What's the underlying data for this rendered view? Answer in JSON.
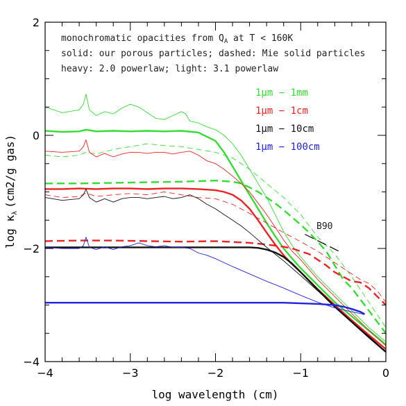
{
  "chart_data": {
    "type": "line",
    "xlabel": "log wavelength (cm)",
    "ylabel": "log κ_λ (cm2/g gas)",
    "ylabel_main": "log κ",
    "ylabel_sub": "λ",
    "ylabel_units": "(cm2/g gas)",
    "xlim": [
      -4,
      0
    ],
    "ylim": [
      -4,
      2
    ],
    "x_ticks": [
      -4,
      -3,
      -2,
      -1,
      0
    ],
    "x_tick_labels": [
      "−4",
      "−3",
      "−2",
      "−1",
      "0"
    ],
    "y_ticks": [
      -4,
      -2,
      0,
      2
    ],
    "y_tick_labels": [
      "−4",
      "−2",
      "0",
      "2"
    ],
    "grid": false,
    "legend_position": "top-right",
    "notes": {
      "line1_prefix": "monochromatic opacities from Q",
      "line1_sub": "A",
      "line1_suffix": " at T < 160K",
      "line2": "solid: our porous particles; dashed: Mie solid particles",
      "line3": "heavy: 2.0 powerlaw; light: 3.1 powerlaw"
    },
    "legend": [
      {
        "mu": "1μm",
        "rest": " − 1mm",
        "color": "#33dd33"
      },
      {
        "mu": "1μm",
        "rest": " − 1cm",
        "color": "#ee2222"
      },
      {
        "mu": "1μm",
        "rest": " − 10cm",
        "color": "#111111"
      },
      {
        "mu": "1μm",
        "rest": " − 100cm",
        "color": "#2222dd"
      }
    ],
    "annotation": {
      "text": "B90",
      "line": [
        [
          -0.95,
          -1.75
        ],
        [
          -0.55,
          -2.05
        ]
      ]
    },
    "series": [
      {
        "name": "1μm − 1mm",
        "style": "solid",
        "weight": "light",
        "color": "#33dd33",
        "x": [
          -4.0,
          -3.8,
          -3.6,
          -3.55,
          -3.52,
          -3.48,
          -3.4,
          -3.3,
          -3.2,
          -3.1,
          -3.0,
          -2.9,
          -2.8,
          -2.7,
          -2.6,
          -2.5,
          -2.4,
          -2.35,
          -2.3,
          -2.2,
          -2.1,
          -2.0,
          -1.9,
          -1.8,
          -1.7,
          -1.6,
          -1.5,
          -1.4,
          -1.3,
          -1.2,
          -1.1,
          -1.0,
          -0.8,
          -0.6,
          -0.4,
          -0.2,
          0.0
        ],
        "y": [
          0.5,
          0.4,
          0.45,
          0.55,
          0.73,
          0.45,
          0.35,
          0.42,
          0.38,
          0.48,
          0.55,
          0.5,
          0.4,
          0.3,
          0.28,
          0.35,
          0.42,
          0.38,
          0.25,
          0.22,
          0.15,
          0.1,
          0.0,
          -0.15,
          -0.35,
          -0.6,
          -0.85,
          -1.1,
          -1.4,
          -1.7,
          -1.95,
          -2.15,
          -2.5,
          -2.8,
          -3.1,
          -3.4,
          -3.65
        ]
      },
      {
        "name": "1μm − 1mm",
        "style": "solid",
        "weight": "heavy",
        "color": "#33dd33",
        "x": [
          -4.0,
          -3.8,
          -3.6,
          -3.52,
          -3.4,
          -3.2,
          -3.0,
          -2.8,
          -2.6,
          -2.4,
          -2.2,
          -2.0,
          -1.9,
          -1.8,
          -1.7,
          -1.6,
          -1.5,
          -1.4,
          -1.3,
          -1.2,
          -1.1,
          -1.0,
          -0.8,
          -0.6,
          -0.4,
          -0.2,
          0.0
        ],
        "y": [
          0.08,
          0.06,
          0.07,
          0.1,
          0.07,
          0.08,
          0.07,
          0.08,
          0.07,
          0.08,
          0.05,
          -0.1,
          -0.3,
          -0.55,
          -0.8,
          -1.05,
          -1.3,
          -1.55,
          -1.78,
          -2.0,
          -2.18,
          -2.35,
          -2.65,
          -2.95,
          -3.2,
          -3.45,
          -3.7
        ]
      },
      {
        "name": "1μm − 1mm",
        "style": "dashed",
        "weight": "light",
        "color": "#33dd33",
        "x": [
          -4.0,
          -3.8,
          -3.6,
          -3.52,
          -3.4,
          -3.2,
          -3.0,
          -2.8,
          -2.6,
          -2.4,
          -2.2,
          -2.0,
          -1.8,
          -1.6,
          -1.4,
          -1.2,
          -1.0,
          -0.9,
          -0.8,
          -0.6,
          -0.4,
          -0.2,
          0.0
        ],
        "y": [
          -0.35,
          -0.38,
          -0.35,
          -0.3,
          -0.33,
          -0.25,
          -0.2,
          -0.15,
          -0.18,
          -0.2,
          -0.25,
          -0.3,
          -0.4,
          -0.6,
          -0.85,
          -1.1,
          -1.4,
          -1.6,
          -1.8,
          -2.1,
          -2.5,
          -2.95,
          -3.4
        ]
      },
      {
        "name": "1μm − 1mm",
        "style": "dashed",
        "weight": "heavy",
        "color": "#33dd33",
        "x": [
          -4.0,
          -3.6,
          -3.2,
          -2.8,
          -2.4,
          -2.0,
          -1.8,
          -1.7,
          -1.6,
          -1.5,
          -1.4,
          -1.3,
          -1.2,
          -1.1,
          -1.0,
          -0.9,
          -0.8,
          -0.7,
          -0.6,
          -0.5,
          -0.4,
          -0.3,
          -0.2,
          -0.1,
          0.0
        ],
        "y": [
          -0.85,
          -0.85,
          -0.84,
          -0.83,
          -0.82,
          -0.8,
          -0.82,
          -0.85,
          -0.92,
          -1.0,
          -1.1,
          -1.2,
          -1.32,
          -1.45,
          -1.58,
          -1.72,
          -1.88,
          -2.05,
          -2.3,
          -2.55,
          -2.7,
          -2.9,
          -3.1,
          -3.3,
          -3.5
        ]
      },
      {
        "name": "1μm − 1cm",
        "style": "solid",
        "weight": "light",
        "color": "#ee2222",
        "x": [
          -4.0,
          -3.8,
          -3.6,
          -3.55,
          -3.52,
          -3.48,
          -3.4,
          -3.3,
          -3.2,
          -3.1,
          -3.0,
          -2.9,
          -2.8,
          -2.7,
          -2.6,
          -2.5,
          -2.4,
          -2.3,
          -2.2,
          -2.1,
          -2.0,
          -1.9,
          -1.8,
          -1.7,
          -1.6,
          -1.5,
          -1.4,
          -1.3,
          -1.2,
          -1.1,
          -1.0,
          -0.8,
          -0.6,
          -0.4,
          -0.2,
          0.0
        ],
        "y": [
          -0.28,
          -0.3,
          -0.28,
          -0.2,
          -0.08,
          -0.3,
          -0.38,
          -0.32,
          -0.38,
          -0.33,
          -0.3,
          -0.3,
          -0.32,
          -0.3,
          -0.3,
          -0.33,
          -0.3,
          -0.28,
          -0.35,
          -0.45,
          -0.5,
          -0.6,
          -0.72,
          -0.85,
          -1.0,
          -1.2,
          -1.4,
          -1.62,
          -1.85,
          -2.05,
          -2.2,
          -2.55,
          -2.85,
          -3.15,
          -3.45,
          -3.72
        ]
      },
      {
        "name": "1μm − 1cm",
        "style": "solid",
        "weight": "heavy",
        "color": "#ee2222",
        "x": [
          -4.0,
          -3.8,
          -3.6,
          -3.4,
          -3.2,
          -3.0,
          -2.8,
          -2.6,
          -2.4,
          -2.2,
          -2.0,
          -1.9,
          -1.8,
          -1.7,
          -1.6,
          -1.5,
          -1.4,
          -1.3,
          -1.2,
          -1.1,
          -1.0,
          -0.8,
          -0.6,
          -0.4,
          -0.2,
          0.0
        ],
        "y": [
          -0.95,
          -0.95,
          -0.94,
          -0.95,
          -0.94,
          -0.94,
          -0.95,
          -0.94,
          -0.94,
          -0.95,
          -0.97,
          -1.0,
          -1.05,
          -1.15,
          -1.3,
          -1.5,
          -1.72,
          -1.93,
          -2.12,
          -2.28,
          -2.42,
          -2.72,
          -3.0,
          -3.27,
          -3.53,
          -3.78
        ]
      },
      {
        "name": "1μm − 1cm",
        "style": "dashed",
        "weight": "light",
        "color": "#ee2222",
        "x": [
          -4.0,
          -3.8,
          -3.6,
          -3.52,
          -3.4,
          -3.2,
          -3.0,
          -2.8,
          -2.6,
          -2.4,
          -2.2,
          -2.0,
          -1.8,
          -1.6,
          -1.4,
          -1.2,
          -1.0,
          -0.8,
          -0.6,
          -0.4,
          -0.3,
          -0.2,
          -0.1,
          0.0
        ],
        "y": [
          -1.05,
          -1.1,
          -1.08,
          -1.02,
          -1.08,
          -1.05,
          -1.03,
          -1.05,
          -1.0,
          -1.05,
          -1.1,
          -1.12,
          -1.22,
          -1.38,
          -1.55,
          -1.72,
          -1.88,
          -2.05,
          -2.25,
          -2.45,
          -2.55,
          -2.62,
          -2.75,
          -2.95
        ]
      },
      {
        "name": "1μm − 1cm",
        "style": "dashed",
        "weight": "heavy",
        "color": "#ee2222",
        "x": [
          -4.0,
          -3.6,
          -3.2,
          -2.8,
          -2.4,
          -2.0,
          -1.6,
          -1.4,
          -1.2,
          -1.1,
          -1.0,
          -0.9,
          -0.8,
          -0.7,
          -0.6,
          -0.5,
          -0.4,
          -0.3,
          -0.2,
          -0.1,
          0.0
        ],
        "y": [
          -1.87,
          -1.86,
          -1.86,
          -1.87,
          -1.88,
          -1.87,
          -1.9,
          -1.93,
          -1.97,
          -2.0,
          -2.05,
          -2.1,
          -2.2,
          -2.3,
          -2.42,
          -2.5,
          -2.58,
          -2.6,
          -2.7,
          -2.85,
          -3.0
        ]
      },
      {
        "name": "1μm − 10cm",
        "style": "solid",
        "weight": "light",
        "color": "#111111",
        "x": [
          -4.0,
          -3.8,
          -3.6,
          -3.55,
          -3.52,
          -3.48,
          -3.4,
          -3.3,
          -3.2,
          -3.1,
          -3.0,
          -2.9,
          -2.8,
          -2.7,
          -2.6,
          -2.5,
          -2.4,
          -2.3,
          -2.2,
          -2.1,
          -2.0,
          -1.9,
          -1.8,
          -1.7,
          -1.6,
          -1.5,
          -1.4,
          -1.3,
          -1.2,
          -1.1,
          -1.0,
          -0.8,
          -0.6,
          -0.4,
          -0.2,
          0.0
        ],
        "y": [
          -1.1,
          -1.15,
          -1.12,
          -1.05,
          -0.95,
          -1.1,
          -1.18,
          -1.12,
          -1.18,
          -1.12,
          -1.1,
          -1.1,
          -1.12,
          -1.1,
          -1.08,
          -1.12,
          -1.1,
          -1.05,
          -1.12,
          -1.22,
          -1.3,
          -1.4,
          -1.5,
          -1.6,
          -1.72,
          -1.85,
          -1.98,
          -2.1,
          -2.22,
          -2.35,
          -2.48,
          -2.75,
          -3.02,
          -3.3,
          -3.55,
          -3.82
        ]
      },
      {
        "name": "1μm − 10cm",
        "style": "solid",
        "weight": "heavy",
        "color": "#111111",
        "x": [
          -4.0,
          -3.6,
          -3.2,
          -2.8,
          -2.4,
          -2.0,
          -1.8,
          -1.6,
          -1.5,
          -1.4,
          -1.3,
          -1.2,
          -1.1,
          -1.0,
          -0.8,
          -0.6,
          -0.4,
          -0.2,
          0.0
        ],
        "y": [
          -1.98,
          -1.98,
          -1.98,
          -1.98,
          -1.98,
          -1.98,
          -1.98,
          -1.98,
          -1.99,
          -2.02,
          -2.07,
          -2.15,
          -2.27,
          -2.42,
          -2.73,
          -3.03,
          -3.3,
          -3.57,
          -3.83
        ]
      },
      {
        "name": "1μm − 100cm",
        "style": "solid",
        "weight": "light",
        "color": "#2222dd",
        "x": [
          -4.0,
          -3.8,
          -3.6,
          -3.55,
          -3.52,
          -3.48,
          -3.4,
          -3.3,
          -3.2,
          -3.1,
          -3.0,
          -2.9,
          -2.8,
          -2.7,
          -2.6,
          -2.5,
          -2.4,
          -2.3,
          -2.2,
          -2.1,
          -2.0,
          -1.9,
          -1.8,
          -1.6,
          -1.4,
          -1.2,
          -1.0,
          -0.8,
          -0.6,
          -0.4,
          -0.3,
          -0.25
        ],
        "y": [
          -1.98,
          -2.0,
          -2.0,
          -1.95,
          -1.8,
          -1.98,
          -2.02,
          -1.97,
          -2.02,
          -1.97,
          -1.95,
          -1.9,
          -1.95,
          -1.97,
          -1.95,
          -1.98,
          -1.98,
          -2.0,
          -2.08,
          -2.12,
          -2.18,
          -2.25,
          -2.32,
          -2.45,
          -2.58,
          -2.7,
          -2.83,
          -2.95,
          -3.05,
          -3.12,
          -3.15,
          -3.17
        ]
      },
      {
        "name": "1μm − 100cm",
        "style": "solid",
        "weight": "heavy",
        "color": "#2222dd",
        "x": [
          -4.0,
          -3.6,
          -3.2,
          -2.8,
          -2.4,
          -2.0,
          -1.6,
          -1.2,
          -1.0,
          -0.8,
          -0.6,
          -0.5,
          -0.4,
          -0.3,
          -0.25
        ],
        "y": [
          -2.96,
          -2.96,
          -2.96,
          -2.96,
          -2.96,
          -2.96,
          -2.96,
          -2.96,
          -2.97,
          -2.98,
          -3.0,
          -3.03,
          -3.07,
          -3.12,
          -3.16
        ]
      }
    ]
  }
}
